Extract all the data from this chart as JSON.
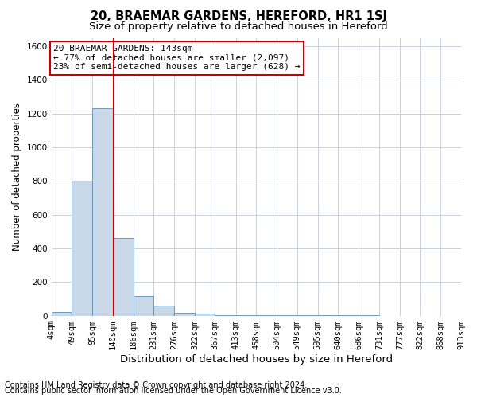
{
  "title": "20, BRAEMAR GARDENS, HEREFORD, HR1 1SJ",
  "subtitle": "Size of property relative to detached houses in Hereford",
  "xlabel": "Distribution of detached houses by size in Hereford",
  "ylabel": "Number of detached properties",
  "footnote1": "Contains HM Land Registry data © Crown copyright and database right 2024.",
  "footnote2": "Contains public sector information licensed under the Open Government Licence v3.0.",
  "property_line_x": 143,
  "annotation_line1": "20 BRAEMAR GARDENS: 143sqm",
  "annotation_line2": "← 77% of detached houses are smaller (2,097)",
  "annotation_line3": "23% of semi-detached houses are larger (628) →",
  "bin_edges": [
    4,
    49,
    95,
    140,
    186,
    231,
    276,
    322,
    367,
    413,
    458,
    504,
    549,
    595,
    640,
    686,
    731,
    777,
    822,
    868,
    913
  ],
  "bar_heights": [
    20,
    800,
    1230,
    460,
    115,
    60,
    18,
    10,
    5,
    3,
    2,
    2,
    1,
    1,
    1,
    1,
    0,
    0,
    0,
    0
  ],
  "tick_labels": [
    "4sqm",
    "49sqm",
    "95sqm",
    "140sqm",
    "186sqm",
    "231sqm",
    "276sqm",
    "322sqm",
    "367sqm",
    "413sqm",
    "458sqm",
    "504sqm",
    "549sqm",
    "595sqm",
    "640sqm",
    "686sqm",
    "731sqm",
    "777sqm",
    "822sqm",
    "868sqm",
    "913sqm"
  ],
  "bar_color": "#c8d8e8",
  "bar_edge_color": "#6090b0",
  "ylim": [
    0,
    1650
  ],
  "yticks": [
    0,
    200,
    400,
    600,
    800,
    1000,
    1200,
    1400,
    1600
  ],
  "grid_color": "#c8d0dc",
  "background_color": "#ffffff",
  "red_line_color": "#cc0000",
  "annotation_box_facecolor": "#ffffff",
  "annotation_box_edgecolor": "#cc0000",
  "title_fontsize": 10.5,
  "subtitle_fontsize": 9.5,
  "xlabel_fontsize": 9.5,
  "ylabel_fontsize": 8.5,
  "tick_fontsize": 7.5,
  "annotation_fontsize": 8,
  "footnote_fontsize": 7
}
